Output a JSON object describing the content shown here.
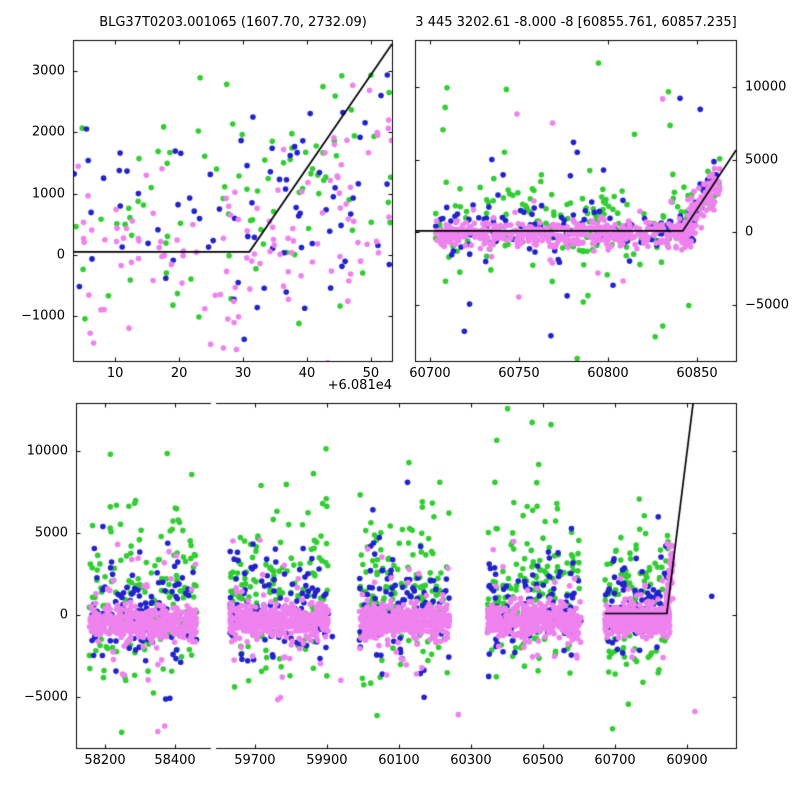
{
  "titles": {
    "left": "BLG37T0203.001065 (1607.70, 2732.09)",
    "right": "3 445 3202.61 -8.000 -8 [60855.761, 60857.235]"
  },
  "chart_data": {
    "type": "scatter",
    "description": "Microlensing photometry candidate plot: three scatter panels (zoom on current season end, current season, full light curve with broken time axis) with a piecewise-linear model line; flux residuals vs time (JD-2400000). Dense point clouds are represented by per-cluster generative distribution parameters measured from the figure.",
    "seed": 42,
    "marker_radius": 2.8,
    "line_color": "#000000",
    "axis_color": "#000000",
    "background": "#ffffff",
    "series_colors": {
      "green": "#32CD32",
      "blue": "#2222CC",
      "pink": "#EE82EE"
    },
    "draw_order": [
      "green",
      "blue",
      "pink"
    ],
    "panels": [
      {
        "id": "top_left",
        "x_range": [
          60813.4,
          60863.3
        ],
        "y_range": [
          -1730,
          3505
        ],
        "x_offset_text": "+6.081e4",
        "x_ticks": [
          {
            "v": 60820,
            "label": "10"
          },
          {
            "v": 60830,
            "label": "20"
          },
          {
            "v": 60840,
            "label": "30"
          },
          {
            "v": 60850,
            "label": "40"
          },
          {
            "v": 60860,
            "label": "50"
          }
        ],
        "y_ticks": [
          {
            "v": -1000,
            "label": "−1000"
          },
          {
            "v": 0,
            "label": "0"
          },
          {
            "v": 1000,
            "label": "1000"
          },
          {
            "v": 2000,
            "label": "2000"
          },
          {
            "v": 3000,
            "label": "3000"
          }
        ],
        "spines": [
          "left",
          "right",
          "top",
          "bottom"
        ],
        "x_label_side": "bottom",
        "y_label_side": "left",
        "model_line": [
          [
            60813.4,
            50
          ],
          [
            60841,
            50
          ],
          [
            60863.3,
            3440
          ]
        ],
        "clusters": [
          {
            "x0": 60813.4,
            "x1": 60863.3,
            "series": {
              "green": {
                "n": 70,
                "mean": 900,
                "sd": 850,
                "tail_n": 8,
                "tail_sd": 1700
              },
              "blue": {
                "n": 62,
                "mean": 550,
                "sd": 800,
                "tail_n": 6,
                "tail_sd": 1400
              },
              "pink": {
                "n": 88,
                "mean": 200,
                "sd": 750,
                "tail_n": 10,
                "tail_sd": 1500
              }
            }
          },
          {
            "x0": 60841,
            "x1": 60863.3,
            "slope": 110,
            "series": {
              "green": {
                "n": 12,
                "mean": 300,
                "sd": 600
              },
              "blue": {
                "n": 10,
                "mean": 250,
                "sd": 500
              },
              "pink": {
                "n": 22,
                "mean": 200,
                "sd": 500
              }
            }
          }
        ]
      },
      {
        "id": "top_right",
        "x_range": [
          60691.6,
          60871.9
        ],
        "y_range": [
          -8850,
          13230
        ],
        "x_ticks": [
          {
            "v": 60700,
            "label": "60700"
          },
          {
            "v": 60750,
            "label": "60750"
          },
          {
            "v": 60800,
            "label": "60800"
          },
          {
            "v": 60850,
            "label": "60850"
          }
        ],
        "y_ticks": [
          {
            "v": -5000,
            "label": "−5000"
          },
          {
            "v": 0,
            "label": "0"
          },
          {
            "v": 5000,
            "label": "5000"
          },
          {
            "v": 10000,
            "label": "10000"
          }
        ],
        "spines": [
          "left",
          "right",
          "top",
          "bottom"
        ],
        "x_label_side": "bottom",
        "y_label_side": "right",
        "model_line": [
          [
            60691.6,
            100
          ],
          [
            60842,
            100
          ],
          [
            60871.9,
            5650
          ]
        ],
        "clusters": [
          {
            "x0": 60703,
            "x1": 60848,
            "series": {
              "pink": {
                "n": 440,
                "mean": -150,
                "sd": 430,
                "tail_n": 28,
                "tail_sd": 1700
              },
              "green": {
                "n": 150,
                "mean": 500,
                "sd": 1600,
                "tail_n": 20,
                "tail_sd": 4200
              },
              "blue": {
                "n": 115,
                "mean": 250,
                "sd": 950,
                "tail_n": 14,
                "tail_sd": 3200
              }
            }
          },
          {
            "x0": 60840,
            "x1": 60863,
            "slope": 150,
            "series": {
              "pink": {
                "n": 115,
                "mean": 0,
                "sd": 650
              },
              "green": {
                "n": 28,
                "mean": 200,
                "sd": 800
              },
              "blue": {
                "n": 26,
                "mean": 150,
                "sd": 700
              }
            }
          },
          {
            "x0": 60705,
            "x1": 60860,
            "series": {
              "green": {
                "n": 4,
                "mean": 10600,
                "sd": 1500
              },
              "blue": {
                "n": 2,
                "mean": 9200,
                "sd": 600
              },
              "pink": {
                "n": 3,
                "mean": 8200,
                "sd": 500
              }
            }
          },
          {
            "x0": 60710,
            "x1": 60855,
            "series": {
              "green": {
                "n": 3,
                "mean": -5800,
                "sd": 900
              },
              "blue": {
                "n": 2,
                "mean": -6600,
                "sd": 1400
              },
              "pink": {
                "n": 2,
                "mean": -4600,
                "sd": 700
              }
            }
          }
        ]
      },
      {
        "id": "bottom_left",
        "x_range": [
          58117,
          58500
        ],
        "y_range": [
          -8100,
          12930
        ],
        "x_ticks": [
          {
            "v": 58200,
            "label": "58200"
          },
          {
            "v": 58400,
            "label": "58400"
          }
        ],
        "y_ticks": [
          {
            "v": -5000,
            "label": "−5000"
          },
          {
            "v": 0,
            "label": "0"
          },
          {
            "v": 5000,
            "label": "5000"
          },
          {
            "v": 10000,
            "label": "10000"
          }
        ],
        "spines": [
          "left",
          "top",
          "bottom"
        ],
        "x_label_side": "bottom",
        "y_label_side": "left",
        "model_line": null,
        "clusters": [
          {
            "x0": 58155,
            "x1": 58462,
            "series": {
              "pink": {
                "n": 420,
                "mean": -500,
                "sd": 520,
                "tail_n": 42,
                "tail_sd": 2100
              },
              "green": {
                "n": 130,
                "mean": 1600,
                "sd": 2400,
                "tail_n": 26,
                "tail_sd": 4200
              },
              "blue": {
                "n": 96,
                "mean": 400,
                "sd": 1500,
                "tail_n": 12,
                "tail_sd": 3000
              }
            }
          },
          {
            "x0": 58200,
            "x1": 58430,
            "series": {
              "green": {
                "n": 2,
                "mean": 10700,
                "sd": 600
              },
              "pink": {
                "n": 2,
                "mean": -6600,
                "sd": 700
              }
            }
          }
        ]
      },
      {
        "id": "bottom_right",
        "x_range": [
          59592,
          61036
        ],
        "y_range": [
          -8100,
          12930
        ],
        "x_ticks": [
          {
            "v": 59700,
            "label": "59700"
          },
          {
            "v": 59900,
            "label": "59900"
          },
          {
            "v": 60100,
            "label": "60100"
          },
          {
            "v": 60300,
            "label": "60300"
          },
          {
            "v": 60500,
            "label": "60500"
          },
          {
            "v": 60700,
            "label": "60700"
          },
          {
            "v": 60900,
            "label": "60900"
          }
        ],
        "y_ticks": [
          {
            "v": -5000,
            "label": "−5000"
          },
          {
            "v": 0,
            "label": "0"
          },
          {
            "v": 5000,
            "label": "5000"
          },
          {
            "v": 10000,
            "label": "10000"
          }
        ],
        "spines": [
          "right",
          "top",
          "bottom"
        ],
        "x_label_side": "bottom",
        "y_label_side": "none",
        "model_line": [
          [
            60672,
            100
          ],
          [
            60844,
            100
          ],
          [
            60917,
            12930
          ]
        ],
        "clusters": [
          {
            "x0": 59630,
            "x1": 59905,
            "series": {
              "pink": {
                "n": 400,
                "mean": -350,
                "sd": 480,
                "tail_n": 40,
                "tail_sd": 2000
              },
              "green": {
                "n": 125,
                "mean": 1400,
                "sd": 2300,
                "tail_n": 25,
                "tail_sd": 4200
              },
              "blue": {
                "n": 92,
                "mean": 600,
                "sd": 1600,
                "tail_n": 12,
                "tail_sd": 3200
              }
            }
          },
          {
            "x0": 59990,
            "x1": 60240,
            "series": {
              "pink": {
                "n": 400,
                "mean": -350,
                "sd": 480,
                "tail_n": 40,
                "tail_sd": 2000
              },
              "green": {
                "n": 125,
                "mean": 1400,
                "sd": 2300,
                "tail_n": 25,
                "tail_sd": 4200
              },
              "blue": {
                "n": 92,
                "mean": 600,
                "sd": 1600,
                "tail_n": 12,
                "tail_sd": 3200
              }
            }
          },
          {
            "x0": 60345,
            "x1": 60605,
            "series": {
              "pink": {
                "n": 400,
                "mean": -350,
                "sd": 480,
                "tail_n": 40,
                "tail_sd": 2000
              },
              "green": {
                "n": 125,
                "mean": 1400,
                "sd": 2300,
                "tail_n": 25,
                "tail_sd": 4200
              },
              "blue": {
                "n": 92,
                "mean": 600,
                "sd": 1600,
                "tail_n": 12,
                "tail_sd": 3200
              }
            }
          },
          {
            "x0": 60672,
            "x1": 60852,
            "series": {
              "pink": {
                "n": 420,
                "mean": -250,
                "sd": 430,
                "tail_n": 28,
                "tail_sd": 1600
              },
              "green": {
                "n": 105,
                "mean": 900,
                "sd": 2100,
                "tail_n": 16,
                "tail_sd": 4200
              },
              "blue": {
                "n": 82,
                "mean": 400,
                "sd": 1300,
                "tail_n": 10,
                "tail_sd": 2900
              }
            }
          },
          {
            "x0": 60840,
            "x1": 60862,
            "slope": 165,
            "series": {
              "pink": {
                "n": 62,
                "mean": 0,
                "sd": 600,
                "tail_n": 6,
                "tail_sd": 3200
              }
            }
          },
          {
            "x0": 59620,
            "x1": 60990,
            "series": {
              "green": {
                "n": 7,
                "mean": 1500,
                "sd": 4800
              },
              "pink": {
                "n": 7,
                "mean": -2200,
                "sd": 3000
              },
              "blue": {
                "n": 4,
                "mean": 500,
                "sd": 4200
              }
            }
          }
        ]
      }
    ]
  }
}
